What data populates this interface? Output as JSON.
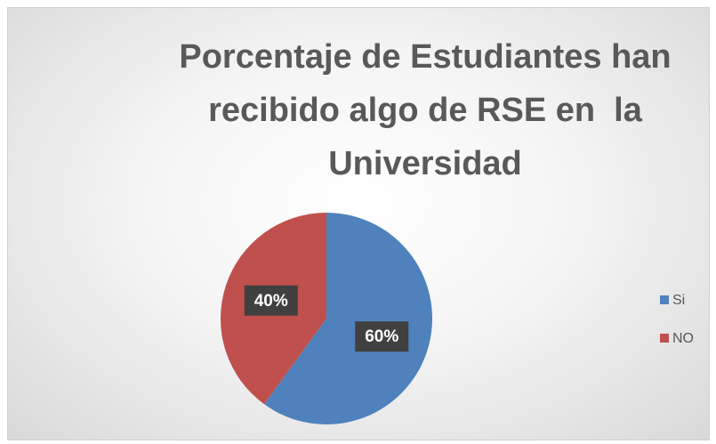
{
  "chart_data": {
    "type": "pie",
    "title": "Porcentaje de Estudiantes han recibido algo de RSE en  la Universidad",
    "categories": [
      "Si",
      "NO"
    ],
    "values": [
      60,
      40
    ],
    "value_labels": [
      "60%",
      "40%"
    ],
    "colors": [
      "#4f81bd",
      "#c0504d"
    ],
    "legend": "right"
  }
}
